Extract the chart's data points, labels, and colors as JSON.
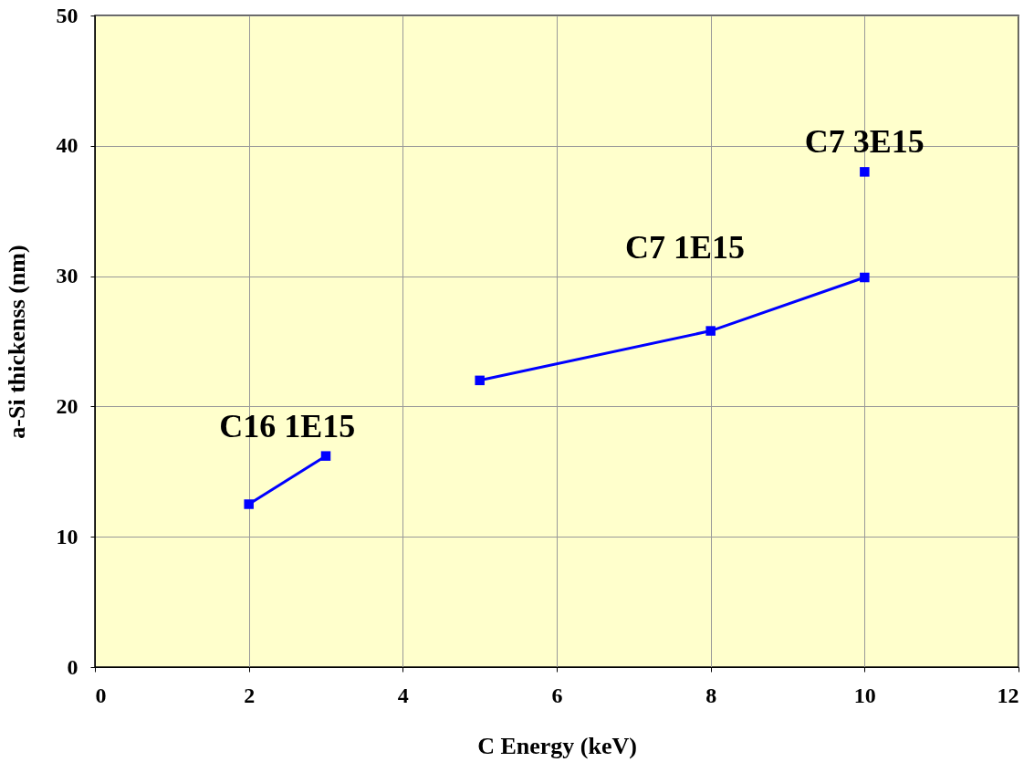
{
  "chart_data": {
    "type": "line",
    "xlabel": "C Energy (keV)",
    "ylabel": "a-Si thickenss (nm)",
    "series": [
      {
        "name": "C16 1E15",
        "color": "#0000ff",
        "x": [
          2,
          3
        ],
        "values": [
          12.5,
          16.2
        ]
      },
      {
        "name": "C7 1E15",
        "color": "#0000ff",
        "x": [
          5,
          8,
          10
        ],
        "values": [
          22.0,
          25.8,
          29.9
        ]
      },
      {
        "name": "C7 3E15",
        "color": "#0000ff",
        "x": [
          10
        ],
        "values": [
          38.0
        ]
      }
    ],
    "xlim": [
      0,
      12
    ],
    "xticks": [
      0,
      2,
      4,
      6,
      8,
      10,
      12
    ],
    "ylim": [
      0,
      50
    ],
    "yticks": [
      0,
      10,
      20,
      30,
      40,
      50
    ],
    "grid": true,
    "legend": false,
    "marker": "square",
    "line_style": "solid"
  }
}
